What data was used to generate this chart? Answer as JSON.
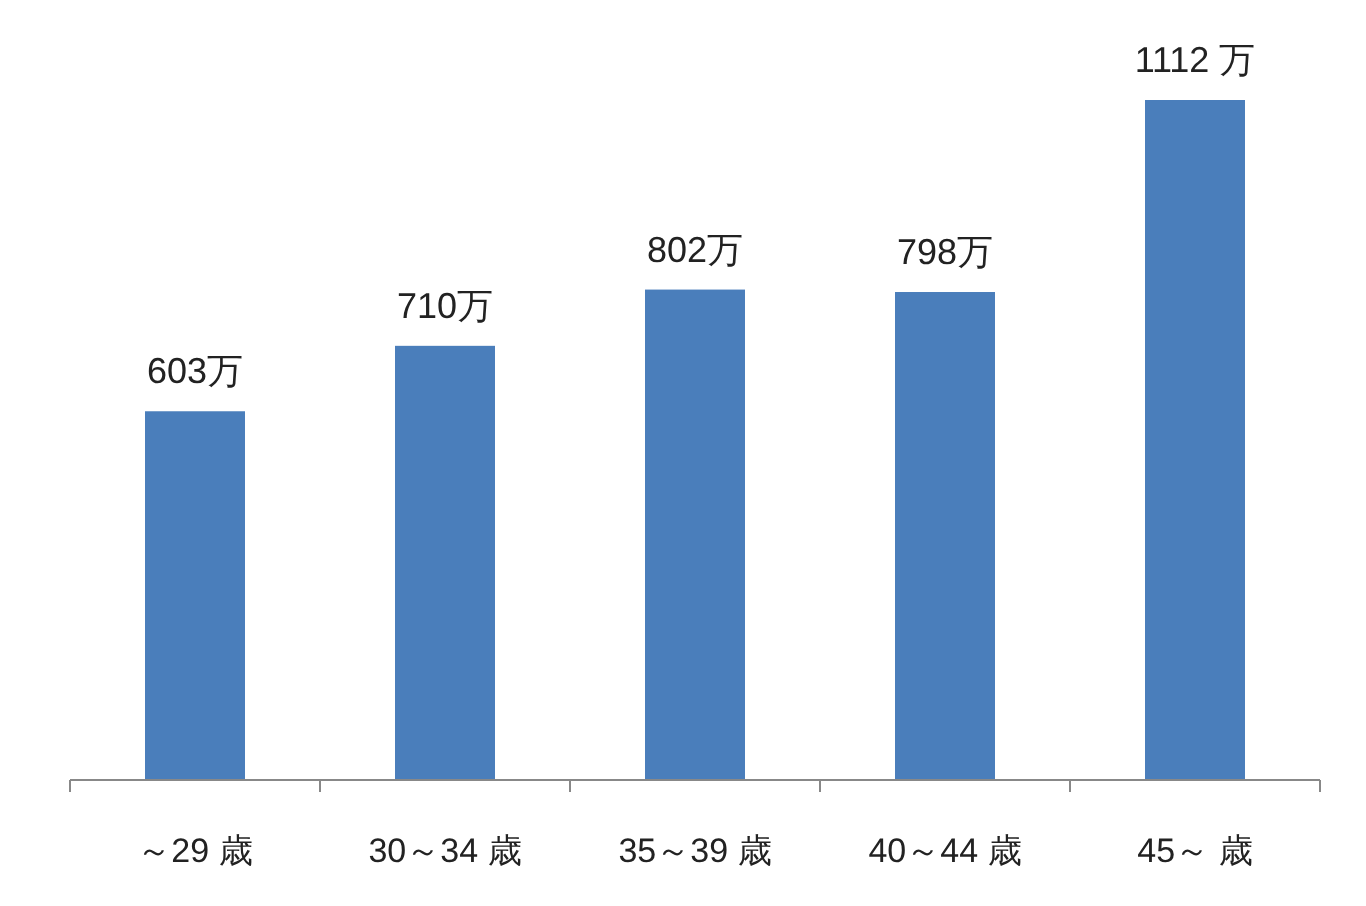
{
  "chart_data": {
    "type": "bar",
    "categories": [
      "～29 歳",
      "30～34 歳",
      "35～39 歳",
      "40～44 歳",
      "45～ 歳"
    ],
    "values": [
      603,
      710,
      802,
      798,
      1112
    ],
    "value_labels": [
      "603万",
      "710万",
      "802万",
      "798万",
      "1112 万"
    ],
    "color": "#4a7ebb"
  }
}
